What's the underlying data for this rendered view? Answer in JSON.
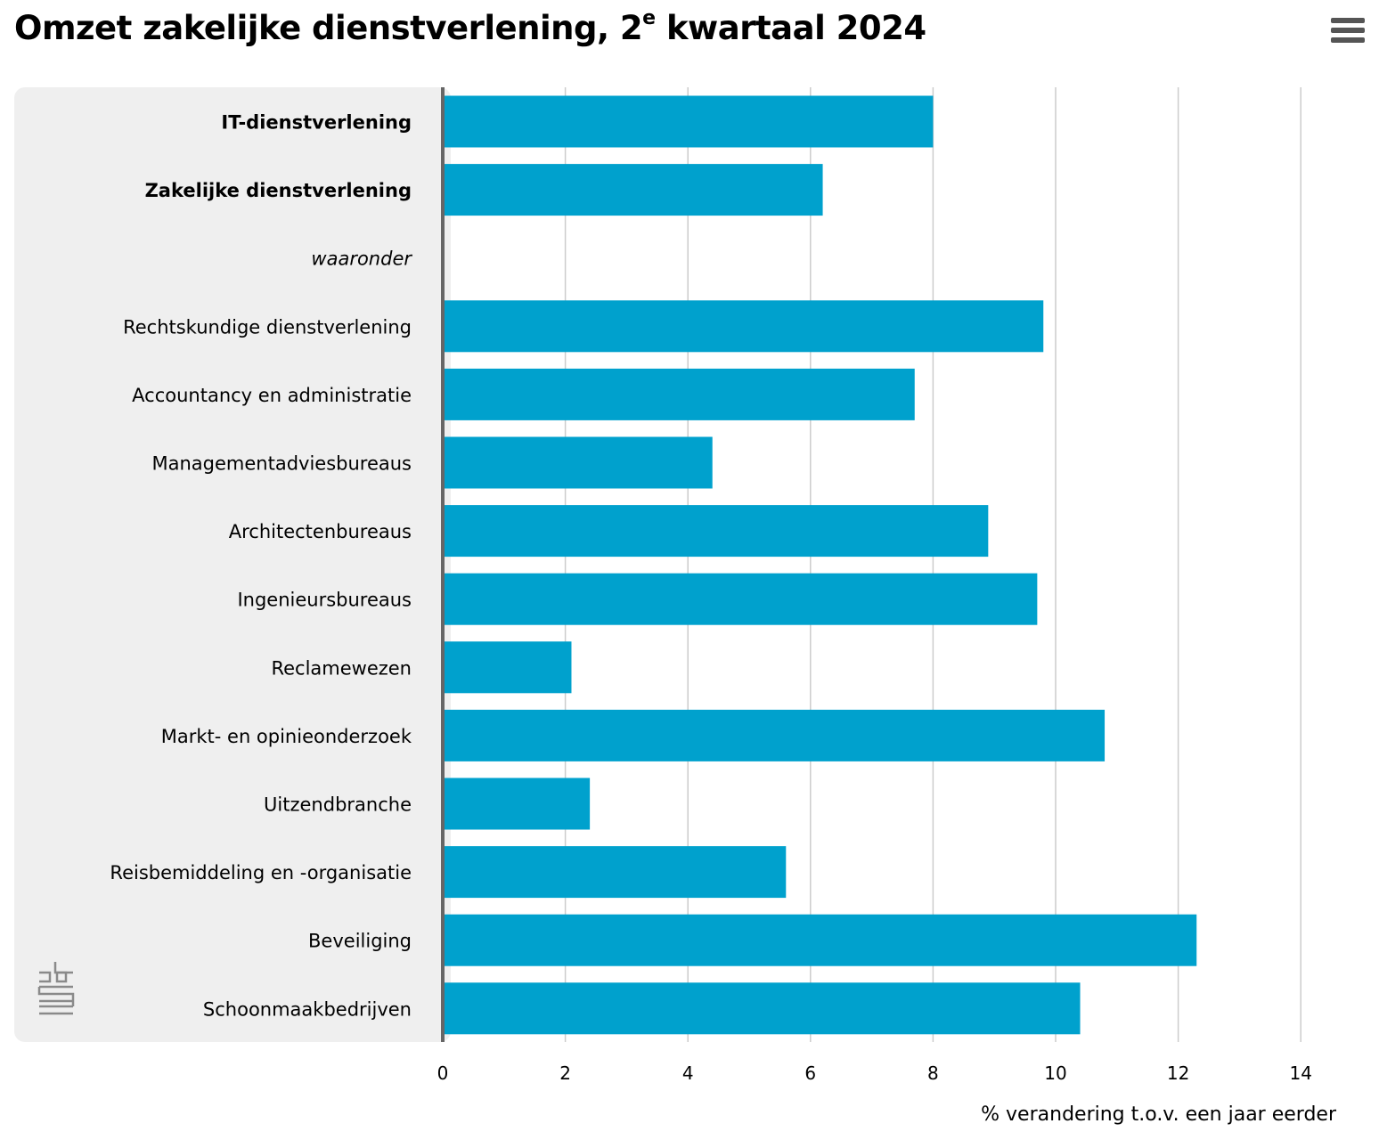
{
  "title": {
    "main": "Omzet zakelijke dienstverlening, 2",
    "sup": "e",
    "rest": " kwartaal 2024"
  },
  "menu": {
    "icon": "hamburger-menu-icon"
  },
  "logo": {
    "icon": "cbs-logo-icon"
  },
  "colors": {
    "bar": "#00a1cd",
    "plot_background": "#efefef",
    "gridline": "#cccccc",
    "axis": "#666666"
  },
  "chart_data": {
    "type": "bar",
    "orientation": "horizontal",
    "categories": [
      "IT-dienstverlening",
      "Zakelijke dienstverlening",
      "waaronder",
      "Rechtskundige dienstverlening",
      "Accountancy en administratie",
      "Managementadviesbureaus",
      "Architectenbureaus",
      "Ingenieursbureaus",
      "Reclamewezen",
      "Markt- en opinieonderzoek",
      "Uitzendbranche",
      "Reisbemiddeling en -organisatie",
      "Beveiliging",
      "Schoonmaakbedrijven"
    ],
    "category_styles": [
      "bold",
      "bold",
      "italic",
      "normal",
      "normal",
      "normal",
      "normal",
      "normal",
      "normal",
      "normal",
      "normal",
      "normal",
      "normal",
      "normal"
    ],
    "values": [
      8.0,
      6.2,
      null,
      9.8,
      7.7,
      4.4,
      8.9,
      9.7,
      2.1,
      10.8,
      2.4,
      5.6,
      12.3,
      10.4
    ],
    "xlabel": "% verandering t.o.v. een jaar eerder",
    "ylabel": "",
    "xlim": [
      0,
      14
    ],
    "xticks": [
      "0",
      "2",
      "4",
      "6",
      "8",
      "10",
      "12",
      "14"
    ],
    "grid": true
  }
}
